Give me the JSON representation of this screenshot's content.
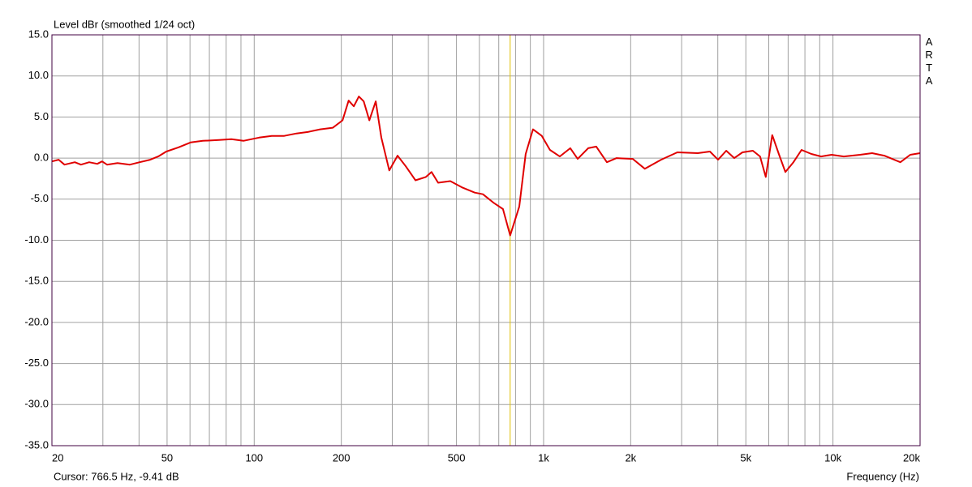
{
  "chart_data": {
    "type": "line",
    "title": "Level dBr (smoothed 1/24 oct)",
    "x_label": "Frequency (Hz)",
    "watermark": "ARTA",
    "xscale": "log",
    "xlim": [
      20,
      20000
    ],
    "ylim": [
      -35,
      15
    ],
    "xticks": [
      20,
      50,
      100,
      200,
      500,
      {
        "value": 1000,
        "label": "1k"
      },
      {
        "value": 2000,
        "label": "2k"
      },
      {
        "value": 5000,
        "label": "5k"
      },
      {
        "value": 10000,
        "label": "10k"
      },
      {
        "value": 20000,
        "label": "20k"
      }
    ],
    "x_minor_grid": [
      30,
      40,
      60,
      70,
      80,
      90,
      300,
      400,
      600,
      700,
      800,
      900,
      3000,
      4000,
      6000,
      7000,
      8000,
      9000
    ],
    "yticks": [
      {
        "value": 15,
        "label": "15.0"
      },
      {
        "value": 10,
        "label": "10.0"
      },
      {
        "value": 5,
        "label": "5.0"
      },
      {
        "value": 0,
        "label": "0.0"
      },
      {
        "value": -5,
        "label": "-5.0"
      },
      {
        "value": -10,
        "label": "-10.0"
      },
      {
        "value": -15,
        "label": "-15.0"
      },
      {
        "value": -20,
        "label": "-20.0"
      },
      {
        "value": -25,
        "label": "-25.0"
      },
      {
        "value": -30,
        "label": "-30.0"
      },
      {
        "value": -35,
        "label": "-35.0"
      }
    ],
    "grid": true,
    "color": "#e00000",
    "cursor": {
      "x": 766.5,
      "y": -9.41,
      "color": "#e0c000",
      "label": "Cursor: 766.5 Hz, -9.41 dB"
    },
    "x": [
      20,
      21.1,
      22.1,
      24,
      25.2,
      26.9,
      28.7,
      29.8,
      31,
      33.7,
      37.2,
      40.2,
      43.7,
      46.6,
      49.7,
      54.7,
      60.3,
      66.4,
      75.6,
      83.4,
      91.8,
      104,
      115,
      127,
      140,
      154,
      169,
      187,
      202,
      212,
      221,
      230,
      239,
      250,
      263,
      275,
      293,
      313,
      334,
      361,
      392,
      410,
      432,
      476,
      525,
      578,
      617,
      670,
      724,
      766.5,
      824,
      867,
      919,
      986,
      1052,
      1137,
      1237,
      1312,
      1426,
      1521,
      1655,
      1787,
      2033,
      2239,
      2547,
      2898,
      3410,
      3758,
      4007,
      4277,
      4560,
      4866,
      5286,
      5600,
      5860,
      6170,
      6500,
      6850,
      7300,
      7790,
      8420,
      9100,
      9890,
      10900,
      12400,
      13660,
      15040,
      17100,
      18500,
      20000
    ],
    "values": [
      -0.4,
      -0.2,
      -0.8,
      -0.5,
      -0.8,
      -0.5,
      -0.7,
      -0.4,
      -0.8,
      -0.6,
      -0.8,
      -0.5,
      -0.2,
      0.2,
      0.8,
      1.3,
      1.9,
      2.1,
      2.2,
      2.3,
      2.1,
      2.5,
      2.7,
      2.7,
      3.0,
      3.2,
      3.5,
      3.7,
      4.6,
      7.0,
      6.3,
      7.5,
      6.9,
      4.6,
      6.9,
      2.5,
      -1.5,
      0.3,
      -1.0,
      -2.7,
      -2.3,
      -1.7,
      -3.0,
      -2.8,
      -3.6,
      -4.2,
      -4.4,
      -5.4,
      -6.2,
      -9.41,
      -5.9,
      0.5,
      3.5,
      2.7,
      1.0,
      0.2,
      1.2,
      -0.1,
      1.2,
      1.4,
      -0.5,
      0.0,
      -0.1,
      -1.3,
      -0.2,
      0.7,
      0.6,
      0.8,
      -0.2,
      0.9,
      0.0,
      0.7,
      0.9,
      0.2,
      -2.3,
      2.8,
      0.5,
      -1.7,
      -0.5,
      1.0,
      0.5,
      0.2,
      0.4,
      0.2,
      0.4,
      0.6,
      0.3,
      -0.5,
      0.4,
      0.6
    ]
  }
}
